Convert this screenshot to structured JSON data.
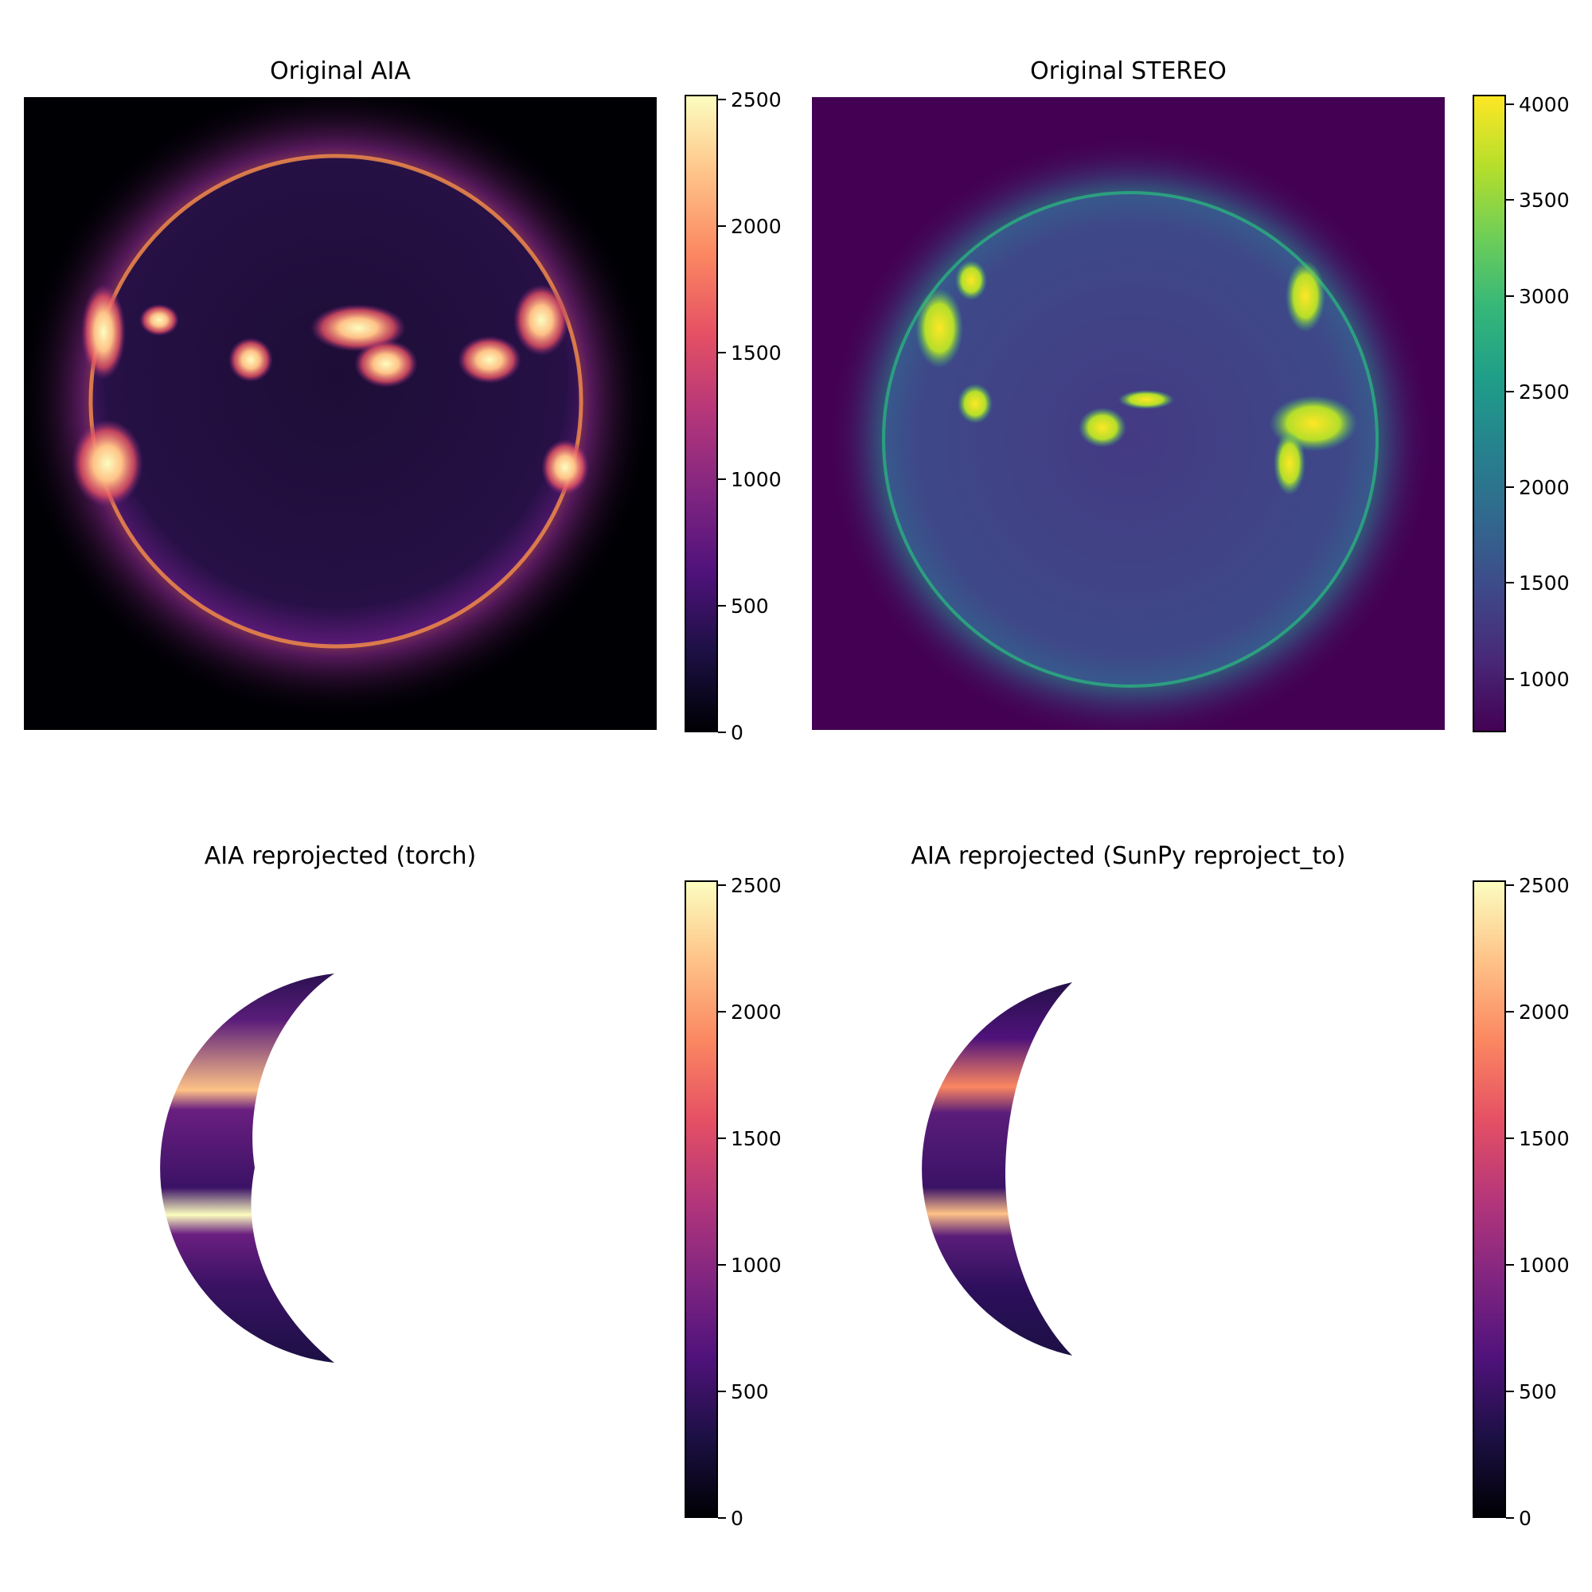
{
  "panels": [
    {
      "title": "Original AIA",
      "colorbar": {
        "colormap": "magma",
        "min": 0,
        "max": 2520,
        "ticks": [
          0,
          500,
          1000,
          1500,
          2000,
          2500
        ],
        "tick_labels": [
          "0",
          "500",
          "1000",
          "1500",
          "2000",
          "2500"
        ]
      }
    },
    {
      "title": "Original STEREO",
      "colorbar": {
        "colormap": "viridis",
        "min": 720,
        "max": 4050,
        "ticks": [
          1000,
          1500,
          2000,
          2500,
          3000,
          3500,
          4000
        ],
        "tick_labels": [
          "1000",
          "1500",
          "2000",
          "2500",
          "3000",
          "3500",
          "4000"
        ]
      }
    },
    {
      "title": "AIA reprojected (torch)",
      "colorbar": {
        "colormap": "magma",
        "min": 0,
        "max": 2520,
        "ticks": [
          0,
          500,
          1000,
          1500,
          2000,
          2500
        ],
        "tick_labels": [
          "0",
          "500",
          "1000",
          "1500",
          "2000",
          "2500"
        ]
      }
    },
    {
      "title": "AIA reprojected (SunPy reproject_to)",
      "colorbar": {
        "colormap": "magma",
        "min": 0,
        "max": 2520,
        "ticks": [
          0,
          500,
          1000,
          1500,
          2000,
          2500
        ],
        "tick_labels": [
          "0",
          "500",
          "1000",
          "1500",
          "2000",
          "2500"
        ]
      }
    }
  ],
  "colors": {
    "magma": [
      "#000004",
      "#1c1044",
      "#4f127b",
      "#812581",
      "#b5367a",
      "#e55064",
      "#fb8761",
      "#fec287",
      "#fcfdbf"
    ],
    "viridis": [
      "#440154",
      "#482878",
      "#3e4989",
      "#31688e",
      "#26828e",
      "#1f9e89",
      "#35b779",
      "#6ece58",
      "#b5de2b",
      "#fde725"
    ],
    "stereo_background": "#440154",
    "aia_background": "#000004"
  }
}
